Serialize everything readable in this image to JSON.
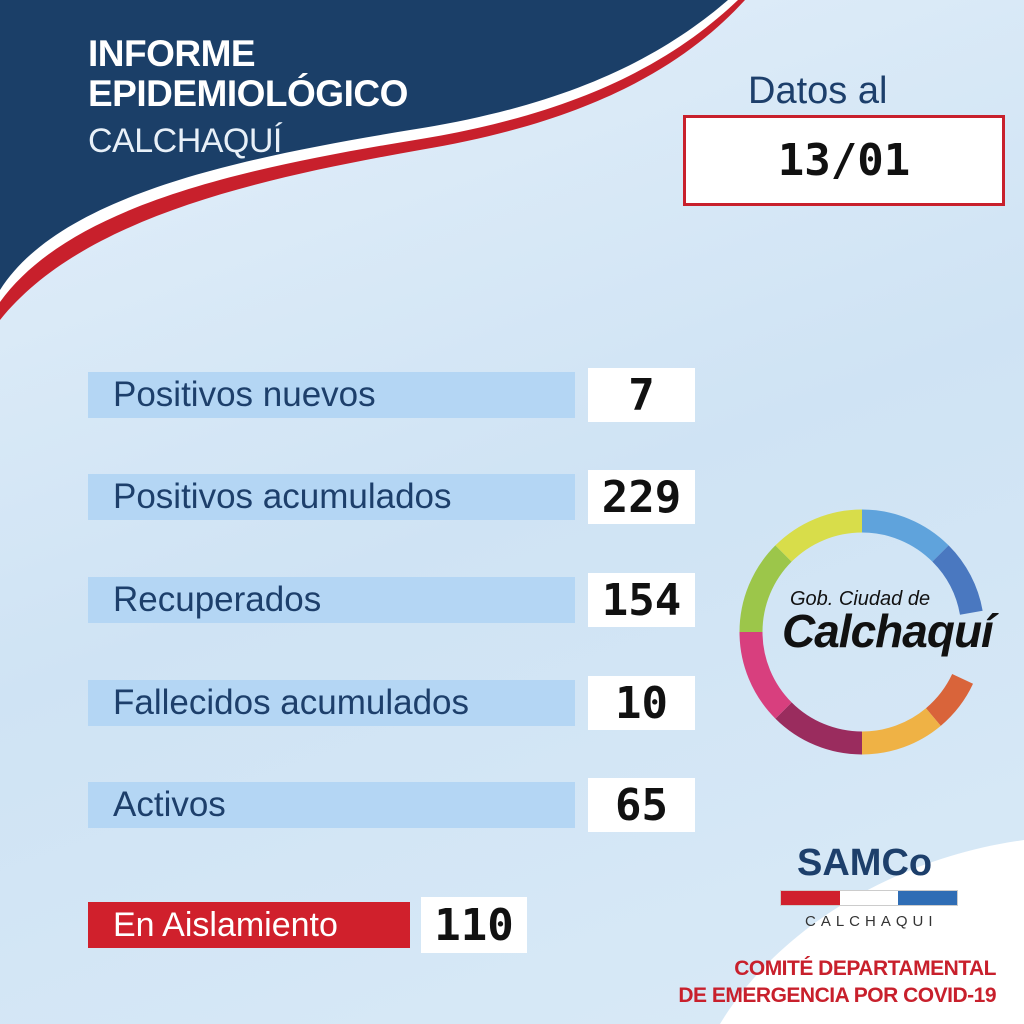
{
  "header": {
    "title_line1": "INFORME",
    "title_line2": "EPIDEMIOLÓGICO",
    "subtitle": "CALCHAQUÍ"
  },
  "date": {
    "label": "Datos al",
    "value": "13/01"
  },
  "stats": [
    {
      "label": "Positivos nuevos",
      "value": "7"
    },
    {
      "label": "Positivos acumulados",
      "value": "229"
    },
    {
      "label": "Recuperados",
      "value": "154"
    },
    {
      "label": "Fallecidos acumulados",
      "value": "10"
    },
    {
      "label": "Activos",
      "value": "65"
    }
  ],
  "isolation": {
    "label": "En Aislamiento",
    "value": "110"
  },
  "gov_logo": {
    "line1": "Gob. Ciudad de",
    "line2": "Calchaquí"
  },
  "samco": {
    "name": "SAMCo",
    "place": "CALCHAQUI"
  },
  "committee": {
    "line1": "COMITÉ DEPARTAMENTAL",
    "line2": "DE EMERGENCIA POR COVID-19"
  },
  "colors": {
    "navy": "#1d3f6b",
    "red": "#c8202c",
    "bar": "#b4d6f4"
  }
}
